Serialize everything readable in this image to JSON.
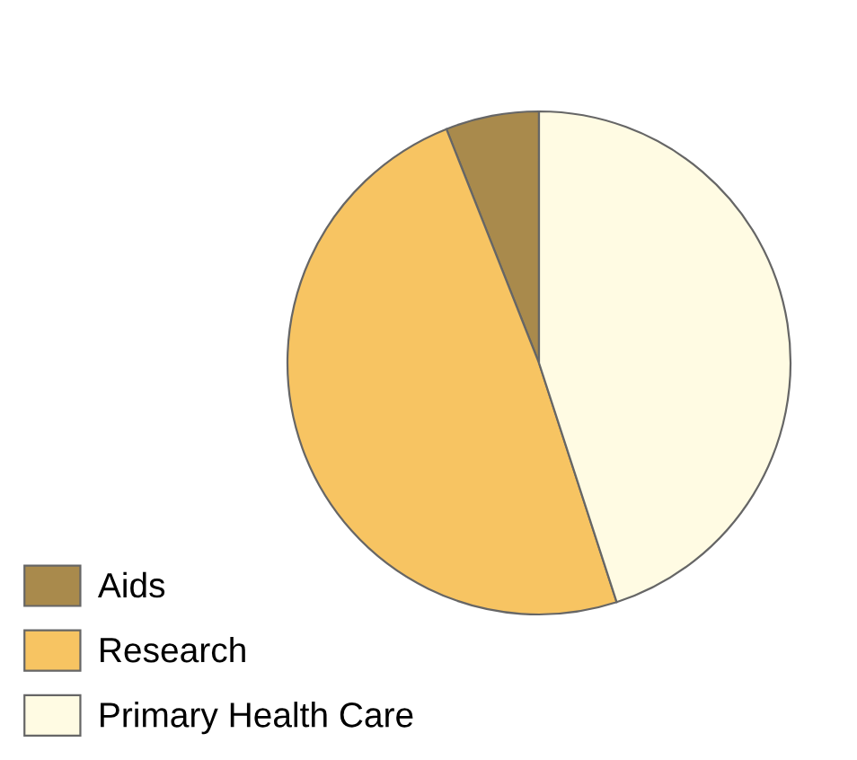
{
  "chart_data": {
    "type": "pie",
    "categories": [
      "Aids",
      "Research",
      "Primary Health Care"
    ],
    "values": [
      6,
      49,
      45
    ],
    "colors": [
      "#a98a4c",
      "#f7c462",
      "#fffbe3"
    ],
    "legend": "bottom left"
  }
}
